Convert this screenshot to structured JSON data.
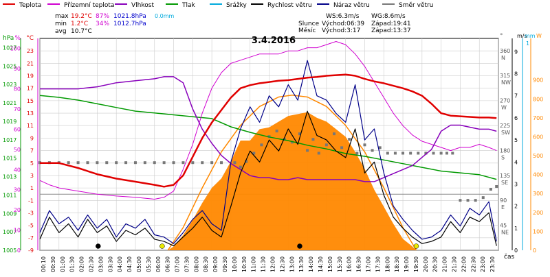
{
  "legend": [
    {
      "label": "Teplota",
      "color": "#e00000",
      "icon": "line-swatch"
    },
    {
      "label": "Přízemní teplota",
      "color": "#d000d0",
      "icon": "line-swatch"
    },
    {
      "label": "Vlhkost",
      "color": "#8800bb",
      "icon": "line-swatch"
    },
    {
      "label": "Tlak",
      "color": "#009900",
      "icon": "line-swatch"
    },
    {
      "label": "Srážky",
      "color": "#00aadd",
      "icon": "line-swatch"
    },
    {
      "label": "Rychlost větru",
      "color": "#000000",
      "icon": "line-swatch"
    },
    {
      "label": "Náraz větru",
      "color": "#000088",
      "icon": "line-swatch"
    },
    {
      "label": "Směr větru",
      "color": "#777777",
      "icon": "line-swatch"
    }
  ],
  "stats": {
    "rows": [
      {
        "label": "max",
        "temp": "19.2°C",
        "hum": "87%",
        "press": "1021.8hPa",
        "rain": "0.0mm"
      },
      {
        "label": "min",
        "temp": "1.2°C",
        "hum": "34%",
        "press": "1012.7hPa",
        "rain": ""
      },
      {
        "label": "avg",
        "temp": "10.7°C",
        "hum": "",
        "press": "",
        "rain": ""
      }
    ],
    "colors": {
      "temp": "#e00000",
      "hum": "#d000d0",
      "press": "#0000cc",
      "rain": "#00aadd",
      "label": "#000000"
    }
  },
  "wind_info": {
    "ws": "WS:6.3m/s",
    "wg": "WG:8.6m/s"
  },
  "sun": {
    "label": "Slunce",
    "rise": "Východ:06:39",
    "set": "Západ:19:41"
  },
  "moon": {
    "label": "Měsíc",
    "rise": "Východ:3:17",
    "set": "Západ:13:37"
  },
  "chart_data": {
    "type": "line",
    "title": "3.4.2016",
    "x_unit_label": "čas",
    "x_ticks": [
      "00:10",
      "00:30",
      "01:00",
      "01:30",
      "02:00",
      "02:30",
      "03:00",
      "03:30",
      "04:00",
      "04:30",
      "05:00",
      "05:30",
      "06:00",
      "06:30",
      "07:00",
      "07:30",
      "08:00",
      "08:30",
      "09:00",
      "09:30",
      "10:00",
      "10:30",
      "11:00",
      "11:30",
      "12:00",
      "12:30",
      "13:00",
      "13:30",
      "14:00",
      "14:30",
      "15:00",
      "15:30",
      "16:00",
      "16:30",
      "17:00",
      "17:30",
      "18:00",
      "18:30",
      "19:00",
      "19:30",
      "20:00",
      "20:30",
      "21:00",
      "21:30",
      "22:00",
      "22:30",
      "23:00",
      "23:30"
    ],
    "axes_left": [
      {
        "unit": "hPa",
        "color": "#009900",
        "ticks": [
          "1027",
          "1025",
          "1023",
          "1021",
          "1019",
          "1017",
          "1015",
          "1013",
          "1011",
          "1009",
          "1007",
          "1005"
        ]
      },
      {
        "unit": "%",
        "color": "#d000d0",
        "ticks": [
          "100",
          "90",
          "80",
          "70",
          "60",
          "50",
          "40",
          "30",
          "20",
          "10",
          "0"
        ]
      },
      {
        "unit": "°C",
        "color": "#e00000",
        "ticks": [
          "23",
          "21",
          "19",
          "17",
          "15",
          "13",
          "11",
          "9",
          "7",
          "5",
          "3",
          "1",
          "-1",
          "-3",
          "-5",
          "-7",
          "-9"
        ]
      }
    ],
    "axes_right": [
      {
        "unit": "°",
        "color": "#555555",
        "ticks": [
          "360",
          "315",
          "270",
          "225",
          "180",
          "135",
          "90",
          "45"
        ],
        "dir_labels": [
          "N",
          "NW",
          "W",
          "SW",
          "S",
          "SE",
          "E",
          "NE"
        ]
      },
      {
        "unit": "m/s",
        "color": "#000000",
        "ticks": [
          "9",
          "8",
          "7",
          "6",
          "5",
          "4",
          "3",
          "2",
          "1",
          "0"
        ]
      },
      {
        "unit": "mm",
        "color": "#00aadd",
        "ticks": [
          "1"
        ]
      },
      {
        "unit": "W",
        "color": "#ff8800",
        "ticks": [
          "900",
          "800",
          "700",
          "600",
          "500",
          "400",
          "300",
          "200",
          "100",
          "0"
        ]
      }
    ],
    "ylim_temp": [
      -9,
      25
    ],
    "ylim_hum": [
      0,
      105
    ],
    "ylim_press": [
      1005,
      1028
    ],
    "ylim_dir": [
      0,
      382
    ],
    "ylim_wind": [
      0,
      9.6
    ],
    "ylim_solar": [
      0,
      1120
    ],
    "series": [
      {
        "name": "Teplota",
        "color": "#e00000",
        "axis": "temp",
        "hours": [
          0,
          1,
          2,
          3,
          4,
          5,
          6,
          6.5,
          7,
          7.5,
          8,
          8.5,
          9,
          9.5,
          10,
          10.5,
          11,
          11.5,
          12,
          12.5,
          13,
          13.5,
          14,
          14.5,
          15,
          15.5,
          16,
          16.5,
          17,
          17.5,
          18,
          18.5,
          19,
          19.5,
          20,
          20.5,
          21,
          21.5,
          22,
          22.5,
          23,
          23.5,
          23.9
        ],
        "values": [
          5,
          5,
          4.2,
          3.2,
          2.5,
          2.0,
          1.5,
          1.2,
          1.5,
          3.0,
          6.0,
          9.0,
          11.5,
          13.5,
          15.5,
          17.0,
          17.5,
          17.8,
          18.0,
          18.2,
          18.3,
          18.5,
          18.7,
          18.8,
          19.0,
          19.1,
          19.2,
          19.0,
          18.5,
          18.1,
          17.8,
          17.4,
          17.0,
          16.5,
          15.8,
          14.5,
          13.0,
          12.6,
          12.5,
          12.4,
          12.3,
          12.3,
          12.2
        ]
      },
      {
        "name": "Přízemní teplota",
        "color": "#d000d0",
        "axis": "temp",
        "hours": [
          0,
          0.5,
          1,
          2,
          3,
          4,
          5,
          6,
          6.5,
          7,
          7.5,
          8,
          8.5,
          9,
          9.5,
          10,
          10.5,
          11,
          11.5,
          12,
          12.5,
          13,
          13.5,
          14,
          14.5,
          15,
          15.5,
          16,
          16.5,
          17,
          17.5,
          18,
          18.5,
          19,
          19.5,
          20,
          20.5,
          21,
          21.5,
          22,
          22.5,
          23,
          23.5,
          23.9
        ],
        "values": [
          2.2,
          1.5,
          1.0,
          0.5,
          0.0,
          -0.3,
          -0.5,
          -0.8,
          -0.5,
          0.5,
          4.0,
          8.0,
          13.0,
          17.0,
          19.5,
          21.0,
          21.5,
          22.0,
          22.5,
          22.5,
          22.5,
          23.0,
          23.0,
          23.5,
          23.5,
          24.0,
          24.5,
          24.0,
          22.5,
          20.5,
          18.0,
          15.5,
          13.0,
          11.0,
          9.5,
          8.5,
          8.0,
          7.5,
          7.0,
          7.5,
          7.5,
          8.0,
          7.5,
          7.0
        ]
      },
      {
        "name": "Vlhkost",
        "color": "#8800bb",
        "axis": "hum",
        "hours": [
          0,
          1,
          2,
          3,
          4,
          5,
          6,
          6.5,
          7,
          7.5,
          8,
          8.5,
          9,
          9.5,
          10,
          10.5,
          11,
          11.5,
          12,
          12.5,
          13,
          13.5,
          14,
          14.5,
          15,
          15.5,
          16,
          16.5,
          17,
          17.5,
          18,
          18.5,
          19,
          19.5,
          20,
          20.5,
          21,
          21.5,
          22,
          22.5,
          23,
          23.5,
          23.9
        ],
        "values": [
          80,
          80,
          80,
          81,
          83,
          84,
          85,
          86,
          86,
          83,
          70,
          60,
          53,
          47,
          43,
          40,
          37,
          36,
          36,
          35,
          35,
          36,
          35,
          35,
          35,
          35,
          35,
          35,
          34,
          34,
          36,
          38,
          40,
          42,
          46,
          50,
          59,
          62,
          62,
          61,
          60,
          60,
          59
        ]
      },
      {
        "name": "Tlak",
        "color": "#009900",
        "axis": "press",
        "hours": [
          0,
          1,
          2,
          3,
          4,
          5,
          6,
          7,
          8,
          9,
          10,
          11,
          12,
          13,
          14,
          15,
          16,
          17,
          18,
          19,
          20,
          21,
          22,
          23,
          23.9
        ],
        "values": [
          1021.8,
          1021.6,
          1021.3,
          1020.9,
          1020.5,
          1020.1,
          1019.9,
          1019.7,
          1019.5,
          1019.3,
          1018.4,
          1017.8,
          1017.3,
          1016.9,
          1016.4,
          1016.0,
          1015.5,
          1015.2,
          1014.8,
          1014.4,
          1014.0,
          1013.6,
          1013.4,
          1013.2,
          1012.7
        ]
      },
      {
        "name": "Rychlost větru",
        "color": "#000000",
        "axis": "wind",
        "hours": [
          0,
          0.5,
          1,
          1.5,
          2,
          2.5,
          3,
          3.5,
          4,
          4.5,
          5,
          5.5,
          6,
          6.5,
          7,
          7.5,
          8,
          8.5,
          9,
          9.5,
          10,
          10.5,
          11,
          11.5,
          12,
          12.5,
          13,
          13.5,
          14,
          14.5,
          15,
          15.5,
          16,
          16.5,
          17,
          17.5,
          18,
          18.5,
          19,
          19.5,
          20,
          20.5,
          21,
          21.5,
          22,
          22.5,
          23,
          23.5,
          23.9
        ],
        "values": [
          0.5,
          1.5,
          0.8,
          1.2,
          0.6,
          1.4,
          0.8,
          1.1,
          0.4,
          0.9,
          0.7,
          1.0,
          0.5,
          0.4,
          0.2,
          0.6,
          1.0,
          1.5,
          0.9,
          0.6,
          2.0,
          3.5,
          4.5,
          4.0,
          5.0,
          4.5,
          5.5,
          4.8,
          6.3,
          5.2,
          5.0,
          4.5,
          4.2,
          5.5,
          3.5,
          4.0,
          2.5,
          1.5,
          1.0,
          0.6,
          0.3,
          0.4,
          0.6,
          1.3,
          0.8,
          1.5,
          1.3,
          1.7,
          0.2
        ]
      },
      {
        "name": "Náraz větru",
        "color": "#000088",
        "axis": "wind",
        "hours": [
          0,
          0.5,
          1,
          1.5,
          2,
          2.5,
          3,
          3.5,
          4,
          4.5,
          5,
          5.5,
          6,
          6.5,
          7,
          7.5,
          8,
          8.5,
          9,
          9.5,
          10,
          10.5,
          11,
          11.5,
          12,
          12.5,
          13,
          13.5,
          14,
          14.5,
          15,
          15.5,
          16,
          16.5,
          17,
          17.5,
          18,
          18.5,
          19,
          19.5,
          20,
          20.5,
          21,
          21.5,
          22,
          22.5,
          23,
          23.5,
          23.9
        ],
        "values": [
          0.8,
          1.8,
          1.2,
          1.5,
          0.9,
          1.6,
          1.0,
          1.4,
          0.6,
          1.2,
          1.0,
          1.4,
          0.7,
          0.6,
          0.3,
          0.8,
          1.4,
          1.8,
          1.2,
          0.9,
          4.0,
          5.5,
          6.5,
          5.8,
          7.0,
          6.5,
          7.5,
          6.8,
          8.6,
          7.0,
          6.8,
          6.2,
          5.8,
          7.5,
          5.0,
          5.5,
          3.5,
          2.0,
          1.4,
          0.9,
          0.5,
          0.6,
          0.9,
          1.6,
          1.1,
          1.9,
          1.6,
          2.2,
          0.4
        ]
      },
      {
        "name": "Sluneční svit",
        "color": "#ff8800",
        "axis": "solar",
        "hours": [
          6.7,
          7,
          7.5,
          8,
          8.5,
          9,
          9.5,
          10,
          10.5,
          11,
          11.5,
          12,
          12.5,
          13,
          13.5,
          14,
          14.5,
          15,
          15.5,
          16,
          16.5,
          17,
          17.5,
          18,
          18.5,
          19,
          19.5,
          19.7
        ],
        "values": [
          0,
          20,
          80,
          160,
          250,
          330,
          380,
          470,
          580,
          580,
          640,
          650,
          680,
          710,
          720,
          730,
          700,
          680,
          640,
          600,
          520,
          430,
          320,
          230,
          140,
          60,
          20,
          0
        ]
      },
      {
        "name": "Sluneční svit max",
        "color": "#ff8800",
        "axis": "solar",
        "hours": [
          6.7,
          7.5,
          8.5,
          9.5,
          10.5,
          11.5,
          12.5,
          13.2,
          14,
          15,
          16,
          17,
          18,
          19,
          19.7
        ],
        "values": [
          0,
          120,
          330,
          520,
          660,
          760,
          810,
          820,
          810,
          760,
          660,
          520,
          330,
          120,
          0
        ]
      },
      {
        "name": "Směr větru",
        "color": "#777777",
        "axis": "dir",
        "type": "scatter",
        "hours": [
          0,
          0.5,
          1,
          1.5,
          2,
          2.5,
          3,
          3.5,
          4,
          4.5,
          5,
          5.5,
          6,
          6.5,
          7,
          7.5,
          8,
          8.5,
          9,
          9.5,
          10.2,
          10.5,
          10.8,
          11.2,
          11.6,
          12,
          12.4,
          12.8,
          13.2,
          13.6,
          14,
          14.3,
          14.6,
          15,
          15.4,
          15.8,
          16.2,
          16.6,
          17,
          17.4,
          17.8,
          18.2,
          18.6,
          19,
          19.4,
          19.8,
          20.2,
          20.6,
          21,
          21.3,
          21.6,
          22,
          22.4,
          22.8,
          23.2,
          23.6,
          23.9
        ],
        "values": [
          158,
          158,
          158,
          158,
          158,
          158,
          158,
          158,
          158,
          158,
          158,
          158,
          158,
          158,
          158,
          158,
          158,
          158,
          158,
          158,
          158,
          150,
          160,
          175,
          190,
          205,
          215,
          200,
          195,
          210,
          180,
          200,
          175,
          190,
          210,
          185,
          200,
          175,
          190,
          180,
          185,
          175,
          175,
          175,
          175,
          175,
          175,
          175,
          175,
          175,
          175,
          90,
          90,
          90,
          95,
          110,
          115
        ]
      }
    ],
    "markers": [
      {
        "hour": 3.05,
        "symbol": "moonrise",
        "color": "#000000"
      },
      {
        "hour": 6.4,
        "symbol": "sunrise",
        "color": "#e8e800"
      },
      {
        "hour": 13.6,
        "symbol": "moonset",
        "color": "#000000"
      },
      {
        "hour": 19.7,
        "symbol": "sunset",
        "color": "#e8e800"
      }
    ]
  }
}
